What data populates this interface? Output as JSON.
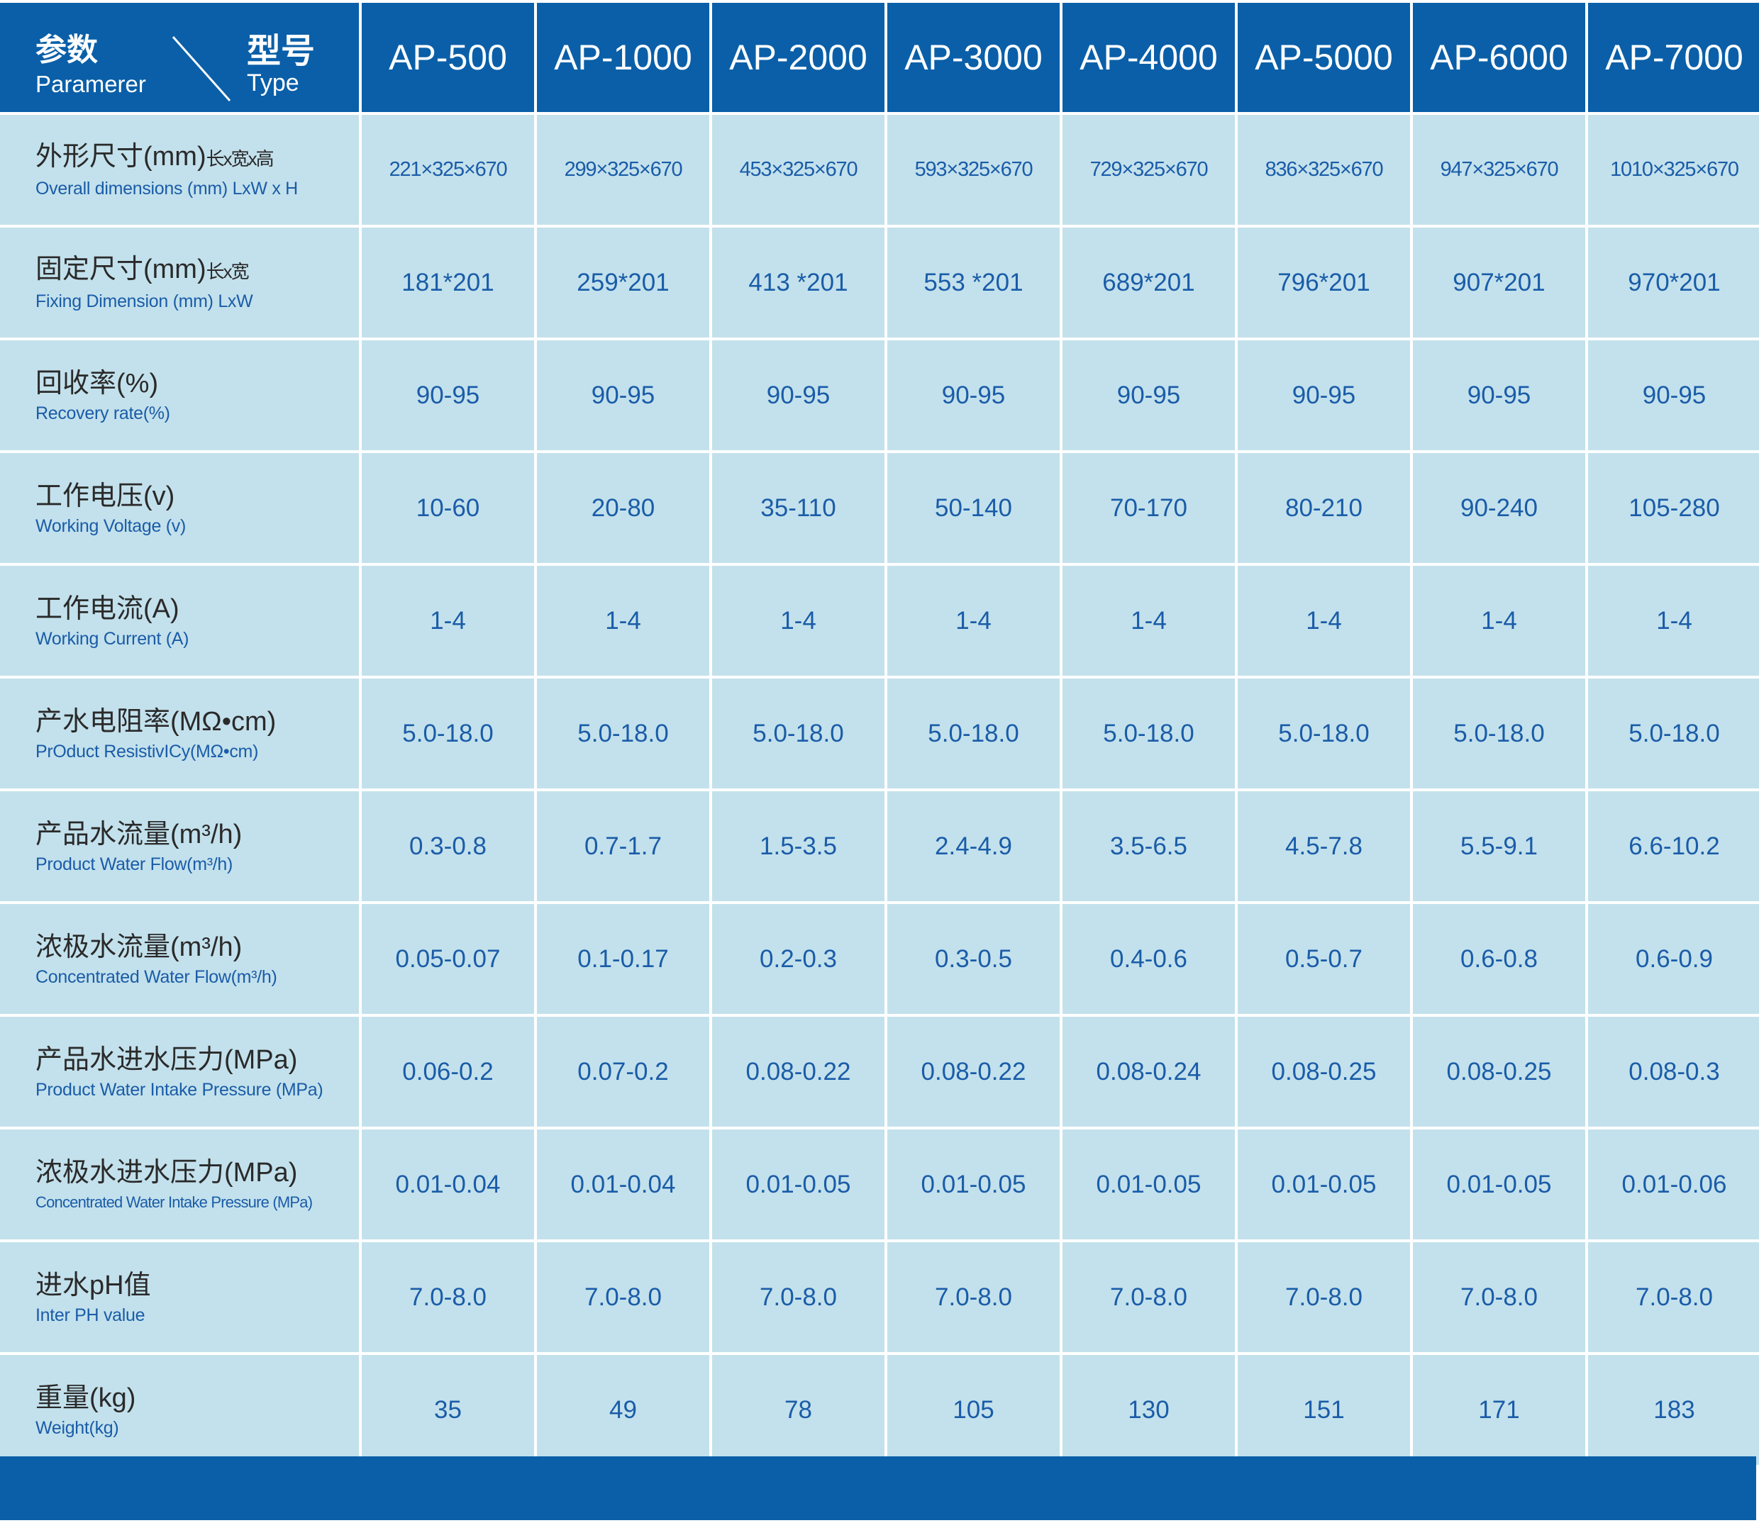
{
  "header": {
    "param_zh": "参数",
    "param_en": "Paramerer",
    "type_zh": "型号",
    "type_en": "Type",
    "models": [
      "AP-500",
      "AP-1000",
      "AP-2000",
      "AP-3000",
      "AP-4000",
      "AP-5000",
      "AP-6000",
      "AP-7000"
    ]
  },
  "rows": [
    {
      "zh": "外形尺寸(mm)",
      "zh_suffix": "长x宽x高",
      "en": "Overall dimensions (mm) LxW x H",
      "small": true,
      "values": [
        "221×325×670",
        "299×325×670",
        "453×325×670",
        "593×325×670",
        "729×325×670",
        "836×325×670",
        "947×325×670",
        "1010×325×670"
      ]
    },
    {
      "zh": "固定尺寸(mm)",
      "zh_suffix": "长x宽",
      "en": "Fixing Dimension (mm) LxW",
      "values": [
        "181*201",
        "259*201",
        "413 *201",
        "553 *201",
        "689*201",
        "796*201",
        "907*201",
        "970*201"
      ]
    },
    {
      "zh": "回收率(%)",
      "en": "Recovery rate(%)",
      "values": [
        "90-95",
        "90-95",
        "90-95",
        "90-95",
        "90-95",
        "90-95",
        "90-95",
        "90-95"
      ]
    },
    {
      "zh": "工作电压(v)",
      "en": "Working Voltage (v)",
      "values": [
        "10-60",
        "20-80",
        "35-110",
        "50-140",
        "70-170",
        "80-210",
        "90-240",
        "105-280"
      ]
    },
    {
      "zh": "工作电流(A)",
      "en": "Working Current (A)",
      "values": [
        "1-4",
        "1-4",
        "1-4",
        "1-4",
        "1-4",
        "1-4",
        "1-4",
        "1-4"
      ]
    },
    {
      "zh": "产水电阻率(MΩ•cm)",
      "en": "PrOduct ResistivICy(MΩ•cm)",
      "values": [
        "5.0-18.0",
        "5.0-18.0",
        "5.0-18.0",
        "5.0-18.0",
        "5.0-18.0",
        "5.0-18.0",
        "5.0-18.0",
        "5.0-18.0"
      ]
    },
    {
      "zh": "产品水流量(m³/h)",
      "en": "Product Water Flow(m³/h)",
      "values": [
        "0.3-0.8",
        "0.7-1.7",
        "1.5-3.5",
        "2.4-4.9",
        "3.5-6.5",
        "4.5-7.8",
        "5.5-9.1",
        "6.6-10.2"
      ]
    },
    {
      "zh": "浓极水流量(m³/h)",
      "en": "Concentrated Water Flow(m³/h)",
      "values": [
        "0.05-0.07",
        "0.1-0.17",
        "0.2-0.3",
        "0.3-0.5",
        "0.4-0.6",
        "0.5-0.7",
        "0.6-0.8",
        "0.6-0.9"
      ]
    },
    {
      "zh": "产品水进水压力(MPa)",
      "en": "Product Water Intake Pressure (MPa)",
      "values": [
        "0.06-0.2",
        "0.07-0.2",
        "0.08-0.22",
        "0.08-0.22",
        "0.08-0.24",
        "0.08-0.25",
        "0.08-0.25",
        "0.08-0.3"
      ]
    },
    {
      "zh": "浓极水进水压力(MPa)",
      "en": "Concentrated Water Intake Pressure (MPa)",
      "tight": true,
      "values": [
        "0.01-0.04",
        "0.01-0.04",
        "0.01-0.05",
        "0.01-0.05",
        "0.01-0.05",
        "0.01-0.05",
        "0.01-0.05",
        "0.01-0.06"
      ]
    },
    {
      "zh": "进水pH值",
      "en": "Inter PH value",
      "values": [
        "7.0-8.0",
        "7.0-8.0",
        "7.0-8.0",
        "7.0-8.0",
        "7.0-8.0",
        "7.0-8.0",
        "7.0-8.0",
        "7.0-8.0"
      ]
    },
    {
      "zh": "重量(kg)",
      "en": "Weight(kg)",
      "values": [
        "35",
        "49",
        "78",
        "105",
        "130",
        "151",
        "171",
        "183"
      ]
    }
  ],
  "colors": {
    "header_bg": "#0a5fa8",
    "cell_bg": "#c3e1ec",
    "value_text": "#1a5ca8",
    "label_text": "#2a2a2a"
  }
}
